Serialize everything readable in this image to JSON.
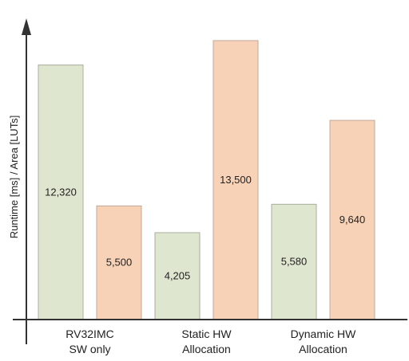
{
  "chart_data": {
    "type": "bar",
    "title": "",
    "xlabel": "",
    "ylabel": "Runtime [ms] / Area [LUTs]",
    "ylim": [
      0,
      14000
    ],
    "grid": false,
    "categories": [
      [
        "RV32IMC",
        "SW only"
      ],
      [
        "Static HW",
        "Allocation"
      ],
      [
        "Dynamic HW",
        "Allocation"
      ]
    ],
    "series": [
      {
        "color": "#dfe6d0",
        "stroke": "#a8ae9c",
        "values": [
          12320,
          4205,
          5580
        ],
        "labels": [
          "12,320",
          "4,205",
          "5,580"
        ]
      },
      {
        "color": "#f7d2b6",
        "stroke": "#c0a898",
        "values": [
          5500,
          13500,
          9640
        ],
        "labels": [
          "5,500",
          "13,500",
          "9,640"
        ]
      }
    ]
  }
}
